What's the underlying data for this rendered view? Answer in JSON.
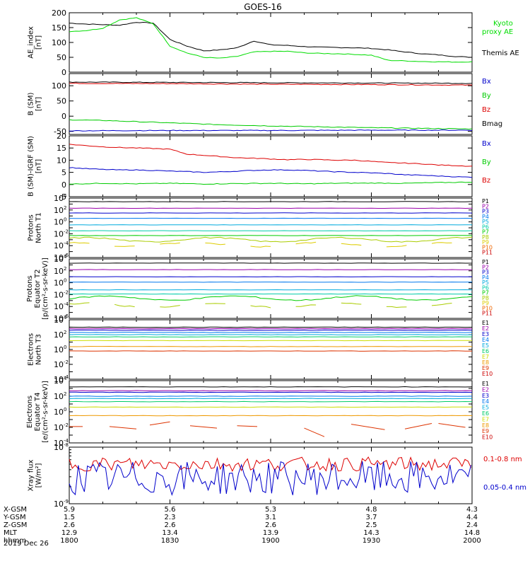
{
  "chart_data": {
    "type": "line",
    "title": "GOES-16",
    "x_unit": "hhmm",
    "date": "2019 Dec 26",
    "x_ticks": [
      "1800",
      "1830",
      "1900",
      "1930",
      "2000"
    ],
    "xlim_minutes": [
      0,
      120
    ],
    "ephemeris": [
      {
        "label": "X-GSM",
        "values": [
          "5.9",
          "5.6",
          "5.3",
          "4.8",
          "4.3"
        ]
      },
      {
        "label": "Y-GSM",
        "values": [
          "1.5",
          "2.3",
          "3.1",
          "3.7",
          "4.4"
        ]
      },
      {
        "label": "Z-GSM",
        "values": [
          "2.6",
          "2.6",
          "2.6",
          "2.5",
          "2.4"
        ]
      },
      {
        "label": "MLT",
        "values": [
          "12.9",
          "13.4",
          "13.9",
          "14.3",
          "14.8"
        ]
      },
      {
        "label": "hhmm",
        "values": [
          "1800",
          "1830",
          "1900",
          "1930",
          "2000"
        ]
      }
    ],
    "panels": [
      {
        "name": "ae",
        "ylabel": [
          "AE_index",
          "[nT]"
        ],
        "scale": "linear",
        "ylim": [
          0,
          200
        ],
        "yticks": [
          "0",
          "50",
          "100",
          "150",
          "200"
        ],
        "series": [
          {
            "name": "Themis AE",
            "color": "#000000",
            "x": [
              0,
              5,
              10,
              15,
              20,
              25,
              30,
              35,
              40,
              45,
              50,
              55,
              60,
              65,
              70,
              75,
              80,
              85,
              90,
              95,
              100,
              105,
              110,
              115,
              120
            ],
            "y": [
              165,
              162,
              160,
              158,
              168,
              165,
              110,
              88,
              72,
              75,
              82,
              105,
              92,
              90,
              86,
              84,
              83,
              82,
              80,
              75,
              68,
              62,
              58,
              53,
              50
            ]
          },
          {
            "name": "Kyoto proxy AE",
            "color": "#00dd00",
            "x": [
              0,
              5,
              10,
              15,
              20,
              25,
              30,
              35,
              40,
              45,
              50,
              55,
              60,
              65,
              70,
              75,
              80,
              85,
              90,
              95,
              100,
              105,
              110,
              115,
              120
            ],
            "y": [
              137,
              140,
              148,
              176,
              183,
              163,
              88,
              65,
              50,
              47,
              53,
              68,
              70,
              70,
              65,
              63,
              62,
              60,
              57,
              40,
              38,
              36,
              35,
              34,
              35
            ]
          }
        ],
        "legend": [
          {
            "text": "Kyoto",
            "color": "#00dd00"
          },
          {
            "text": "proxy AE",
            "color": "#00dd00"
          },
          {
            "text": "Themis AE",
            "color": "#000000"
          }
        ]
      },
      {
        "name": "bsm",
        "ylabel": [
          "B (SM)",
          "[nT]"
        ],
        "scale": "linear",
        "ylim": [
          -60,
          140
        ],
        "yticks": [
          "-50",
          "0",
          "50",
          "100"
        ],
        "tick_values": [
          -50,
          0,
          50,
          100
        ],
        "series": [
          {
            "name": "Bmag",
            "color": "#000000",
            "x": [
              0,
              30,
              60,
              90,
              120
            ],
            "y": [
              112,
              111,
              110,
              109,
              108
            ]
          },
          {
            "name": "Bz",
            "color": "#dd0000",
            "x": [
              0,
              30,
              60,
              90,
              120
            ],
            "y": [
              108,
              107,
              105,
              104,
              102
            ]
          },
          {
            "name": "By",
            "color": "#00cc00",
            "x": [
              0,
              10,
              20,
              30,
              45,
              60,
              75,
              90,
              105,
              120
            ],
            "y": [
              -12,
              -14,
              -18,
              -22,
              -28,
              -32,
              -35,
              -38,
              -40,
              -42
            ]
          },
          {
            "name": "Bx",
            "color": "#0000cc",
            "x": [
              0,
              30,
              60,
              90,
              120
            ],
            "y": [
              -48,
              -47,
              -47,
              -46,
              -46
            ]
          }
        ],
        "legend": [
          {
            "text": "Bx",
            "color": "#0000cc"
          },
          {
            "text": "By",
            "color": "#00cc00"
          },
          {
            "text": "Bz",
            "color": "#dd0000"
          },
          {
            "text": "Bmag",
            "color": "#000000"
          }
        ]
      },
      {
        "name": "bigrf",
        "ylabel": [
          "B (SM)-IGRF (SM)",
          "[nT]"
        ],
        "scale": "linear",
        "ylim": [
          -5,
          20
        ],
        "yticks": [
          "-5",
          "0",
          "5",
          "10",
          "15",
          "20"
        ],
        "tick_values": [
          -5,
          0,
          5,
          10,
          15,
          20
        ],
        "series": [
          {
            "name": "Bz",
            "color": "#dd0000",
            "x": [
              0,
              5,
              10,
              15,
              20,
              25,
              30,
              35,
              40,
              45,
              50,
              55,
              60,
              65,
              70,
              75,
              80,
              85,
              90,
              95,
              100,
              105,
              110,
              115,
              120
            ],
            "y": [
              16.5,
              16,
              15.5,
              15.2,
              15,
              14.8,
              14.5,
              12.5,
              12,
              11.5,
              11,
              10.8,
              10.5,
              10.2,
              10.3,
              10.2,
              10,
              10,
              9.5,
              9,
              8.8,
              8.5,
              8,
              7.8,
              7.5
            ]
          },
          {
            "name": "Bx",
            "color": "#0000cc",
            "x": [
              0,
              5,
              10,
              15,
              20,
              25,
              30,
              35,
              40,
              45,
              50,
              55,
              60,
              65,
              70,
              75,
              80,
              85,
              90,
              95,
              100,
              105,
              110,
              115,
              120
            ],
            "y": [
              7,
              6.5,
              6.2,
              6,
              6,
              5.8,
              5.5,
              5.3,
              5,
              5.2,
              5.5,
              5.8,
              6,
              6,
              5.8,
              5.5,
              5.2,
              5,
              4.8,
              4.5,
              4,
              3.8,
              3.5,
              3.2,
              3
            ]
          },
          {
            "name": "By",
            "color": "#00cc00",
            "x": [
              0,
              10,
              20,
              30,
              40,
              50,
              60,
              70,
              80,
              90,
              100,
              110,
              120
            ],
            "y": [
              0.2,
              0.5,
              0.3,
              0.5,
              0.2,
              0.4,
              0.5,
              0.3,
              0.5,
              0.6,
              0.5,
              0.8,
              1
            ]
          }
        ],
        "legend": [
          {
            "text": "Bx",
            "color": "#0000cc"
          },
          {
            "text": "By",
            "color": "#00cc00"
          },
          {
            "text": "Bz",
            "color": "#dd0000"
          }
        ]
      },
      {
        "name": "protons_north",
        "ylabel": [
          "Protons",
          "North T1"
        ],
        "scale": "log",
        "log_range": [
          -6,
          4
        ],
        "ytick_exps": [
          4,
          2,
          0,
          -2,
          -4,
          -6
        ],
        "series": [
          {
            "name": "P1",
            "color": "#000000",
            "level": 3.4
          },
          {
            "name": "P2",
            "color": "#9900aa",
            "level": 2.3
          },
          {
            "name": "P3",
            "color": "#0000cc",
            "level": 1.5
          },
          {
            "name": "P4",
            "color": "#0077ee",
            "level": 0.6
          },
          {
            "name": "P5",
            "color": "#00aadd",
            "level": -0.5
          },
          {
            "name": "P6",
            "color": "#00ccaa",
            "level": -1.5
          },
          {
            "name": "P7",
            "color": "#00cc00",
            "level": -2.3
          },
          {
            "name": "P8",
            "color": "#aacc00",
            "level": -3.0,
            "wavy": true
          },
          {
            "name": "P9",
            "color": "#ddcc00",
            "level": -3.8,
            "wavy": true
          },
          {
            "name": "P10",
            "color": "#ee6600",
            "level": null
          },
          {
            "name": "P11",
            "color": "#cc0000",
            "level": null
          }
        ],
        "legend": [
          "P1",
          "P2",
          "P3",
          "P4",
          "P5",
          "P6",
          "P7",
          "P8",
          "P9",
          "P10",
          "P11"
        ]
      },
      {
        "name": "protons_equator",
        "ylabel": [
          "Protons",
          "Equator T2",
          "[p/(cm²-s-sr-keV)]"
        ],
        "scale": "log",
        "log_range": [
          -6,
          4
        ],
        "ytick_exps": [
          4,
          2,
          0,
          -2,
          -4,
          -6
        ],
        "series": [
          {
            "name": "P1",
            "color": "#000000",
            "level": 3.3
          },
          {
            "name": "P2",
            "color": "#9900aa",
            "level": 2.2
          },
          {
            "name": "P3",
            "color": "#0000cc",
            "level": 1.0
          },
          {
            "name": "P4",
            "color": "#0077ee",
            "level": 0.1
          },
          {
            "name": "P5",
            "color": "#00aadd",
            "level": -1.2
          },
          {
            "name": "P6",
            "color": "#00ccaa",
            "level": -1.9
          },
          {
            "name": "P7",
            "color": "#00cc00",
            "level": -2.6,
            "wavy": true
          },
          {
            "name": "P8",
            "color": "#aacc00",
            "level": -3.8,
            "wavy": true
          },
          {
            "name": "P9",
            "color": "#ddcc00",
            "level": null
          },
          {
            "name": "P10",
            "color": "#ee6600",
            "level": null
          },
          {
            "name": "P11",
            "color": "#cc0000",
            "level": null
          }
        ],
        "legend": [
          "P1",
          "P2",
          "P3",
          "P4",
          "P5",
          "P6",
          "P7",
          "P8",
          "P9",
          "P10",
          "P11"
        ]
      },
      {
        "name": "electrons_north",
        "ylabel": [
          "Electrons",
          "North T3"
        ],
        "scale": "log",
        "log_range": [
          -4,
          4
        ],
        "ytick_exps": [
          4,
          2,
          0,
          -2,
          -4
        ],
        "series": [
          {
            "name": "E1",
            "color": "#000000",
            "level": 3.0
          },
          {
            "name": "E2",
            "color": "#9900aa",
            "level": 2.8
          },
          {
            "name": "E3",
            "color": "#0000cc",
            "level": 2.6
          },
          {
            "name": "E4",
            "color": "#0077ee",
            "level": 2.3
          },
          {
            "name": "E5",
            "color": "#00aadd",
            "level": 2.0
          },
          {
            "name": "E6",
            "color": "#00cc66",
            "level": 1.7
          },
          {
            "name": "E7",
            "color": "#ccdd00",
            "level": 1.2
          },
          {
            "name": "E8",
            "color": "#ee9900",
            "level": 0.4
          },
          {
            "name": "E9",
            "color": "#dd3300",
            "level": -0.2
          },
          {
            "name": "E10",
            "color": "#cc0000",
            "level": null
          }
        ],
        "legend": [
          "E1",
          "E2",
          "E3",
          "E4",
          "E5",
          "E6",
          "E7",
          "E8",
          "E9",
          "E10"
        ]
      },
      {
        "name": "electrons_equator",
        "ylabel": [
          "Electrons",
          "Equator T4",
          "[e/(cm²-s-sr-keV)]"
        ],
        "scale": "log",
        "log_range": [
          -4,
          4
        ],
        "ytick_exps": [
          4,
          2,
          0,
          -2,
          -4
        ],
        "series": [
          {
            "name": "E1",
            "color": "#000000",
            "level": 3.2
          },
          {
            "name": "E2",
            "color": "#9900aa",
            "level": 2.7
          },
          {
            "name": "E3",
            "color": "#0000cc",
            "level": 2.5
          },
          {
            "name": "E4",
            "color": "#0077ee",
            "level": 2.0
          },
          {
            "name": "E5",
            "color": "#00aadd",
            "level": 1.7
          },
          {
            "name": "E6",
            "color": "#00cc66",
            "level": 1.3
          },
          {
            "name": "E7",
            "color": "#ccdd00",
            "level": 0.6
          },
          {
            "name": "E8",
            "color": "#ee9900",
            "level": -0.5
          },
          {
            "name": "E9",
            "color": "#dd3300",
            "level": null
          },
          {
            "name": "E10",
            "color": "#cc0000",
            "level": null
          }
        ],
        "legend": [
          "E1",
          "E2",
          "E3",
          "E4",
          "E5",
          "E6",
          "E7",
          "E8",
          "E9",
          "E10"
        ]
      },
      {
        "name": "xray",
        "ylabel": [
          "Xray flux",
          "[W/m²]"
        ],
        "scale": "log",
        "log_range": [
          -9,
          -8
        ],
        "ytick_exps": [
          -8,
          -9
        ],
        "series": [
          {
            "name": "0.1-0.8 nm",
            "color": "#dd0000",
            "mean_log": -8.3
          },
          {
            "name": "0.05-0.4 nm",
            "color": "#0000cc",
            "mean_log": -8.55
          }
        ],
        "legend": [
          {
            "text": "0.1-0.8 nm",
            "color": "#dd0000"
          },
          {
            "text": "0.05-0.4 nm",
            "color": "#0000cc"
          }
        ]
      }
    ]
  }
}
